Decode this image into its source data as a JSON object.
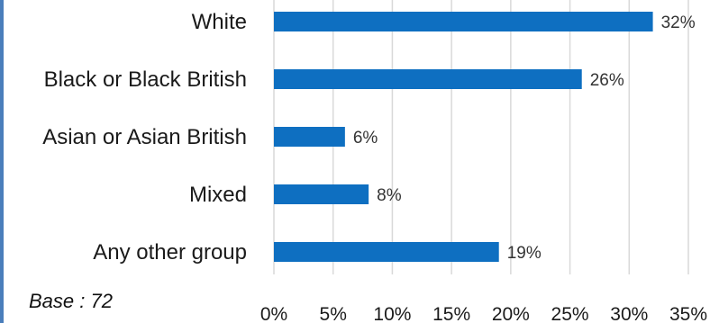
{
  "chart_data": {
    "type": "bar",
    "orientation": "horizontal",
    "categories": [
      "White",
      "Black or Black British",
      "Asian or Asian British",
      "Mixed",
      "Any other group"
    ],
    "values": [
      32,
      26,
      6,
      8,
      19
    ],
    "data_labels": [
      "32%",
      "26%",
      "6%",
      "8%",
      "19%"
    ],
    "xlim": [
      0,
      35
    ],
    "x_ticks": [
      0,
      5,
      10,
      15,
      20,
      25,
      30,
      35
    ],
    "x_tick_labels": [
      "0%",
      "5%",
      "10%",
      "15%",
      "20%",
      "25%",
      "30%",
      "35%"
    ],
    "grid": "vertical",
    "legend": "none",
    "bar_color": "#0e6fc1",
    "grid_color": "#d9d9d9"
  },
  "note": "Base : 72"
}
